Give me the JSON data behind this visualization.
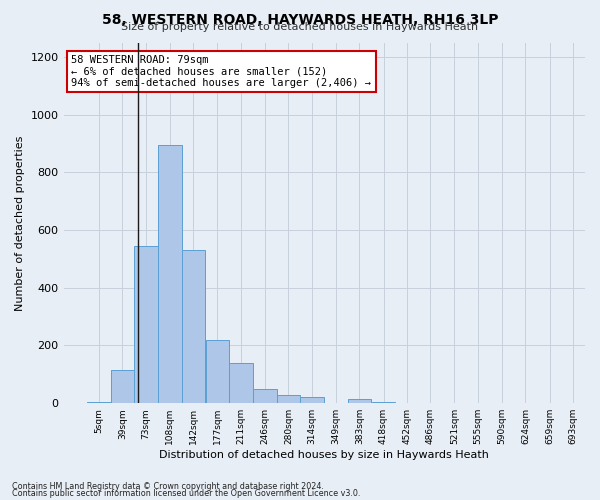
{
  "title1": "58, WESTERN ROAD, HAYWARDS HEATH, RH16 3LP",
  "title2": "Size of property relative to detached houses in Haywards Heath",
  "xlabel": "Distribution of detached houses by size in Haywards Heath",
  "ylabel": "Number of detached properties",
  "footnote1": "Contains HM Land Registry data © Crown copyright and database right 2024.",
  "footnote2": "Contains public sector information licensed under the Open Government Licence v3.0.",
  "annotation_title": "58 WESTERN ROAD: 79sqm",
  "annotation_line1": "← 6% of detached houses are smaller (152)",
  "annotation_line2": "94% of semi-detached houses are larger (2,406) →",
  "property_sqm": 79,
  "bar_edges": [
    5,
    39,
    73,
    108,
    142,
    177,
    211,
    246,
    280,
    314,
    349,
    383,
    418,
    452,
    486,
    521,
    555,
    590,
    624,
    659,
    693
  ],
  "bar_heights": [
    5,
    115,
    545,
    895,
    530,
    220,
    140,
    50,
    30,
    20,
    0,
    15,
    5,
    0,
    0,
    0,
    0,
    0,
    0,
    0
  ],
  "bar_color": "#aec6e8",
  "bar_edge_color": "#5a9fd4",
  "vline_x": 79,
  "vline_color": "#1a1a1a",
  "ylim": [
    0,
    1250
  ],
  "yticks": [
    0,
    200,
    400,
    600,
    800,
    1000,
    1200
  ],
  "annotation_box_color": "#ffffff",
  "annotation_box_edge": "#cc0000",
  "grid_color": "#c8d0dc",
  "background_color": "#e8eef6",
  "figsize": [
    6.0,
    5.0
  ],
  "dpi": 100
}
